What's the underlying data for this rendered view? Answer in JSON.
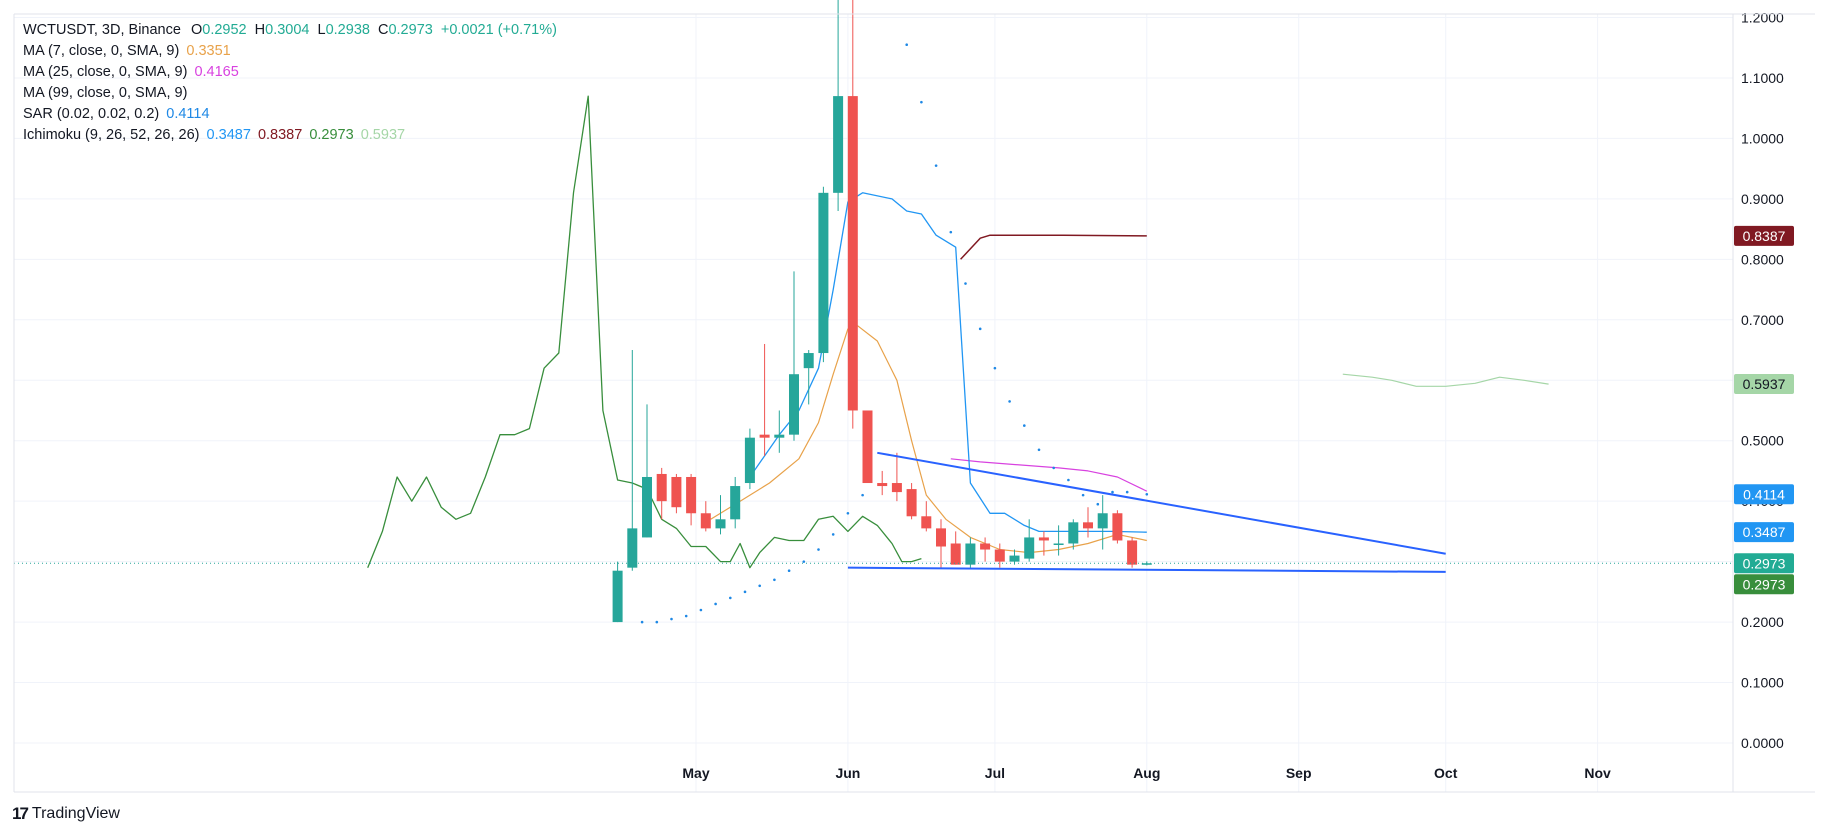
{
  "header": {
    "symbol": "WCTUSDT, 3D, Binance",
    "ohlc": {
      "o_label": "O",
      "o": "0.2952",
      "h_label": "H",
      "h": "0.3004",
      "l_label": "L",
      "l": "0.2938",
      "c_label": "C",
      "c": "0.2973",
      "change": "+0.0021 (+0.71%)"
    }
  },
  "indicators": [
    {
      "label": "MA (7, close, 0, SMA, 9)",
      "value": "0.3351",
      "color": "#e8a24a"
    },
    {
      "label": "MA (25, close, 0, SMA, 9)",
      "value": "0.4165",
      "color": "#d842e0"
    },
    {
      "label": "MA (99, close, 0, SMA, 9)",
      "value": "",
      "color": "#131722"
    },
    {
      "label": "SAR (0.02, 0.02, 0.2)",
      "value": "0.4114",
      "color": "#1e88e5"
    },
    {
      "label": "Ichimoku (9, 26, 52, 26, 26)",
      "values": [
        "0.3487",
        "0.8387",
        "0.2973",
        "0.5937"
      ],
      "colors": [
        "#2196f3",
        "#801922",
        "#388e3c",
        "#a5d6a7"
      ]
    }
  ],
  "price_badges": [
    {
      "text": "0.8387",
      "value": 0.8387,
      "bg": "#801922"
    },
    {
      "text": "0.5937",
      "value": 0.5937,
      "bg": "#a5d6a7"
    },
    {
      "text": "0.4114",
      "value": 0.4114,
      "bg": "#2196f3"
    },
    {
      "text": "0.3487",
      "value": 0.3487,
      "bg": "#2196f3"
    },
    {
      "text": "0.2973",
      "value": 0.2973,
      "bg": "#22ab94"
    },
    {
      "text": "0.2973",
      "value": 0.2973,
      "bg": "#388e3c"
    }
  ],
  "branding": {
    "name": "TradingView",
    "mark": "17"
  },
  "colors": {
    "up": "#26a69a",
    "down": "#ef5350",
    "grid": "#f0f3fa",
    "axis_text": "#131722",
    "trendline": "#2962ff"
  },
  "chart_data": {
    "type": "candlestick",
    "title": "WCTUSDT, 3D, Binance",
    "ylim": [
      0,
      1.2
    ],
    "y_ticks": [
      "0.0000",
      "0.1000",
      "0.2000",
      "0.3000",
      "0.4000",
      "0.5000",
      "0.6000",
      "0.7000",
      "0.8000",
      "0.9000",
      "1.0000",
      "1.1000",
      "1.2000"
    ],
    "y_tick_values": [
      0,
      0.1,
      0.2,
      0.3,
      0.4,
      0.5,
      0.6,
      0.7,
      0.8,
      0.9,
      1.0,
      1.1,
      1.2
    ],
    "x_ticks": [
      "May",
      "Jun",
      "Jul",
      "Aug",
      "Sep",
      "Oct",
      "Nov"
    ],
    "x_tick_dates": [
      "2025-05-01",
      "2025-06-01",
      "2025-07-01",
      "2025-08-01",
      "2025-09-01",
      "2025-10-01",
      "2025-11-01"
    ],
    "x_range": [
      "2025-02-15",
      "2025-11-20"
    ],
    "grid": true,
    "candles": [
      {
        "date": "2025-04-15",
        "o": 0.2,
        "h": 0.3,
        "l": 0.2,
        "c": 0.285
      },
      {
        "date": "2025-04-18",
        "o": 0.29,
        "h": 0.65,
        "l": 0.285,
        "c": 0.355
      },
      {
        "date": "2025-04-21",
        "o": 0.34,
        "h": 0.56,
        "l": 0.34,
        "c": 0.44
      },
      {
        "date": "2025-04-24",
        "o": 0.445,
        "h": 0.455,
        "l": 0.37,
        "c": 0.4
      },
      {
        "date": "2025-04-27",
        "o": 0.44,
        "h": 0.445,
        "l": 0.38,
        "c": 0.39
      },
      {
        "date": "2025-04-30",
        "o": 0.44,
        "h": 0.445,
        "l": 0.36,
        "c": 0.38
      },
      {
        "date": "2025-05-03",
        "o": 0.38,
        "h": 0.4,
        "l": 0.35,
        "c": 0.355
      },
      {
        "date": "2025-05-06",
        "o": 0.355,
        "h": 0.41,
        "l": 0.345,
        "c": 0.37
      },
      {
        "date": "2025-05-09",
        "o": 0.37,
        "h": 0.44,
        "l": 0.355,
        "c": 0.425
      },
      {
        "date": "2025-05-12",
        "o": 0.43,
        "h": 0.52,
        "l": 0.42,
        "c": 0.505
      },
      {
        "date": "2025-05-15",
        "o": 0.51,
        "h": 0.66,
        "l": 0.475,
        "c": 0.505
      },
      {
        "date": "2025-05-18",
        "o": 0.505,
        "h": 0.55,
        "l": 0.48,
        "c": 0.51
      },
      {
        "date": "2025-05-21",
        "o": 0.51,
        "h": 0.78,
        "l": 0.5,
        "c": 0.61
      },
      {
        "date": "2025-05-24",
        "o": 0.62,
        "h": 0.65,
        "l": 0.56,
        "c": 0.645
      },
      {
        "date": "2025-05-27",
        "o": 0.645,
        "h": 0.92,
        "l": 0.63,
        "c": 0.91
      },
      {
        "date": "2025-05-30",
        "o": 0.91,
        "h": 1.24,
        "l": 0.88,
        "c": 1.07
      },
      {
        "date": "2025-06-02",
        "o": 1.07,
        "h": 1.25,
        "l": 0.52,
        "c": 0.55
      },
      {
        "date": "2025-06-05",
        "o": 0.55,
        "h": 0.55,
        "l": 0.43,
        "c": 0.43
      },
      {
        "date": "2025-06-08",
        "o": 0.43,
        "h": 0.45,
        "l": 0.41,
        "c": 0.425
      },
      {
        "date": "2025-06-11",
        "o": 0.43,
        "h": 0.48,
        "l": 0.4,
        "c": 0.415
      },
      {
        "date": "2025-06-14",
        "o": 0.42,
        "h": 0.43,
        "l": 0.37,
        "c": 0.375
      },
      {
        "date": "2025-06-17",
        "o": 0.375,
        "h": 0.4,
        "l": 0.35,
        "c": 0.355
      },
      {
        "date": "2025-06-20",
        "o": 0.355,
        "h": 0.37,
        "l": 0.29,
        "c": 0.325
      },
      {
        "date": "2025-06-23",
        "o": 0.33,
        "h": 0.35,
        "l": 0.295,
        "c": 0.295
      },
      {
        "date": "2025-06-26",
        "o": 0.295,
        "h": 0.34,
        "l": 0.29,
        "c": 0.33
      },
      {
        "date": "2025-06-29",
        "o": 0.33,
        "h": 0.34,
        "l": 0.3,
        "c": 0.32
      },
      {
        "date": "2025-07-02",
        "o": 0.32,
        "h": 0.33,
        "l": 0.29,
        "c": 0.3
      },
      {
        "date": "2025-07-05",
        "o": 0.3,
        "h": 0.32,
        "l": 0.295,
        "c": 0.31
      },
      {
        "date": "2025-07-08",
        "o": 0.305,
        "h": 0.37,
        "l": 0.3,
        "c": 0.34
      },
      {
        "date": "2025-07-11",
        "o": 0.34,
        "h": 0.35,
        "l": 0.31,
        "c": 0.335
      },
      {
        "date": "2025-07-14",
        "o": 0.33,
        "h": 0.36,
        "l": 0.31,
        "c": 0.33
      },
      {
        "date": "2025-07-17",
        "o": 0.33,
        "h": 0.37,
        "l": 0.32,
        "c": 0.365
      },
      {
        "date": "2025-07-20",
        "o": 0.365,
        "h": 0.39,
        "l": 0.34,
        "c": 0.355
      },
      {
        "date": "2025-07-23",
        "o": 0.355,
        "h": 0.41,
        "l": 0.32,
        "c": 0.38
      },
      {
        "date": "2025-07-26",
        "o": 0.38,
        "h": 0.385,
        "l": 0.33,
        "c": 0.335
      },
      {
        "date": "2025-07-29",
        "o": 0.335,
        "h": 0.34,
        "l": 0.29,
        "c": 0.295
      },
      {
        "date": "2025-08-01",
        "o": 0.2952,
        "h": 0.3004,
        "l": 0.2938,
        "c": 0.2973
      }
    ],
    "series": [
      {
        "name": "MA (7, close, 0, SMA, 9)",
        "color": "#e8a24a",
        "points": [
          [
            "2025-05-04",
            0.37
          ],
          [
            "2025-05-10",
            0.4
          ],
          [
            "2025-05-16",
            0.43
          ],
          [
            "2025-05-22",
            0.47
          ],
          [
            "2025-05-26",
            0.53
          ],
          [
            "2025-05-29",
            0.61
          ],
          [
            "2025-06-01",
            0.685
          ],
          [
            "2025-06-03",
            0.69
          ],
          [
            "2025-06-07",
            0.665
          ],
          [
            "2025-06-11",
            0.6
          ],
          [
            "2025-06-14",
            0.5
          ],
          [
            "2025-06-17",
            0.41
          ],
          [
            "2025-06-21",
            0.37
          ],
          [
            "2025-06-26",
            0.34
          ],
          [
            "2025-07-02",
            0.32
          ],
          [
            "2025-07-08",
            0.315
          ],
          [
            "2025-07-14",
            0.32
          ],
          [
            "2025-07-20",
            0.33
          ],
          [
            "2025-07-26",
            0.345
          ],
          [
            "2025-08-01",
            0.335
          ]
        ]
      },
      {
        "name": "MA (25, close, 0, SMA, 9)",
        "color": "#d842e0",
        "points": [
          [
            "2025-06-22",
            0.47
          ],
          [
            "2025-06-28",
            0.465
          ],
          [
            "2025-07-06",
            0.46
          ],
          [
            "2025-07-14",
            0.455
          ],
          [
            "2025-07-20",
            0.45
          ],
          [
            "2025-07-26",
            0.44
          ],
          [
            "2025-08-01",
            0.4165
          ]
        ]
      },
      {
        "name": "SAR (0.02, 0.02, 0.2)",
        "color": "#1e88e5",
        "points": [
          [
            "2025-04-20",
            0.2
          ],
          [
            "2025-04-23",
            0.2
          ],
          [
            "2025-04-26",
            0.205
          ],
          [
            "2025-04-29",
            0.21
          ],
          [
            "2025-05-02",
            0.22
          ],
          [
            "2025-05-05",
            0.23
          ],
          [
            "2025-05-08",
            0.24
          ],
          [
            "2025-05-11",
            0.25
          ],
          [
            "2025-05-14",
            0.26
          ],
          [
            "2025-05-17",
            0.27
          ],
          [
            "2025-05-20",
            0.285
          ],
          [
            "2025-05-23",
            0.3
          ],
          [
            "2025-05-26",
            0.32
          ],
          [
            "2025-05-29",
            0.345
          ],
          [
            "2025-06-01",
            0.38
          ],
          [
            "2025-06-04",
            0.41
          ],
          [
            "2025-06-13",
            1.155
          ],
          [
            "2025-06-16",
            1.06
          ],
          [
            "2025-06-19",
            0.955
          ],
          [
            "2025-06-22",
            0.845
          ],
          [
            "2025-06-25",
            0.76
          ],
          [
            "2025-06-28",
            0.685
          ],
          [
            "2025-07-01",
            0.62
          ],
          [
            "2025-07-04",
            0.565
          ],
          [
            "2025-07-07",
            0.525
          ],
          [
            "2025-07-10",
            0.485
          ],
          [
            "2025-07-13",
            0.455
          ],
          [
            "2025-07-16",
            0.435
          ],
          [
            "2025-07-19",
            0.41
          ],
          [
            "2025-07-22",
            0.395
          ],
          [
            "2025-07-25",
            0.415
          ],
          [
            "2025-07-28",
            0.415
          ],
          [
            "2025-08-01",
            0.4114
          ]
        ]
      },
      {
        "name": "Ichimoku Conversion",
        "color": "#2196f3",
        "points": [
          [
            "2025-05-12",
            0.44
          ],
          [
            "2025-05-18",
            0.51
          ],
          [
            "2025-05-22",
            0.55
          ],
          [
            "2025-05-26",
            0.62
          ],
          [
            "2025-05-29",
            0.75
          ],
          [
            "2025-06-01",
            0.895
          ],
          [
            "2025-06-04",
            0.91
          ],
          [
            "2025-06-10",
            0.9
          ],
          [
            "2025-06-13",
            0.88
          ],
          [
            "2025-06-16",
            0.875
          ],
          [
            "2025-06-19",
            0.84
          ],
          [
            "2025-06-23",
            0.82
          ],
          [
            "2025-06-26",
            0.43
          ],
          [
            "2025-06-30",
            0.38
          ],
          [
            "2025-07-03",
            0.38
          ],
          [
            "2025-07-07",
            0.36
          ],
          [
            "2025-07-10",
            0.35
          ],
          [
            "2025-07-20",
            0.35
          ],
          [
            "2025-07-25",
            0.35
          ],
          [
            "2025-08-01",
            0.3487
          ]
        ]
      },
      {
        "name": "Ichimoku Base",
        "color": "#801922",
        "points": [
          [
            "2025-06-24",
            0.8
          ],
          [
            "2025-06-28",
            0.835
          ],
          [
            "2025-06-30",
            0.84
          ],
          [
            "2025-07-15",
            0.84
          ],
          [
            "2025-08-01",
            0.8387
          ]
        ]
      },
      {
        "name": "Ichimoku Lagging",
        "color": "#388e3c",
        "points": [
          [
            "2025-02-23",
            0.29
          ],
          [
            "2025-02-26",
            0.35
          ],
          [
            "2025-03-01",
            0.44
          ],
          [
            "2025-03-04",
            0.4
          ],
          [
            "2025-03-07",
            0.44
          ],
          [
            "2025-03-10",
            0.39
          ],
          [
            "2025-03-13",
            0.37
          ],
          [
            "2025-03-16",
            0.38
          ],
          [
            "2025-03-19",
            0.44
          ],
          [
            "2025-03-22",
            0.51
          ],
          [
            "2025-03-25",
            0.51
          ],
          [
            "2025-03-28",
            0.52
          ],
          [
            "2025-03-31",
            0.62
          ],
          [
            "2025-04-03",
            0.645
          ],
          [
            "2025-04-06",
            0.91
          ],
          [
            "2025-04-09",
            1.07
          ],
          [
            "2025-04-12",
            0.55
          ],
          [
            "2025-04-15",
            0.435
          ],
          [
            "2025-04-18",
            0.43
          ],
          [
            "2025-04-21",
            0.42
          ],
          [
            "2025-04-24",
            0.37
          ],
          [
            "2025-04-27",
            0.355
          ],
          [
            "2025-04-30",
            0.325
          ],
          [
            "2025-05-03",
            0.325
          ],
          [
            "2025-05-06",
            0.3
          ],
          [
            "2025-05-08",
            0.3
          ],
          [
            "2025-05-10",
            0.33
          ],
          [
            "2025-05-12",
            0.29
          ],
          [
            "2025-05-14",
            0.315
          ],
          [
            "2025-05-17",
            0.34
          ],
          [
            "2025-05-20",
            0.335
          ],
          [
            "2025-05-23",
            0.335
          ],
          [
            "2025-05-26",
            0.37
          ],
          [
            "2025-05-29",
            0.375
          ],
          [
            "2025-06-01",
            0.35
          ],
          [
            "2025-06-04",
            0.375
          ],
          [
            "2025-06-07",
            0.36
          ],
          [
            "2025-06-10",
            0.33
          ],
          [
            "2025-06-12",
            0.3
          ],
          [
            "2025-06-14",
            0.3
          ],
          [
            "2025-06-16",
            0.305
          ]
        ]
      },
      {
        "name": "Ichimoku Leading Span",
        "color": "#a5d6a7",
        "points": [
          [
            "2025-09-10",
            0.61
          ],
          [
            "2025-09-16",
            0.605
          ],
          [
            "2025-09-20",
            0.6
          ],
          [
            "2025-09-25",
            0.59
          ],
          [
            "2025-10-01",
            0.59
          ],
          [
            "2025-10-07",
            0.595
          ],
          [
            "2025-10-12",
            0.605
          ],
          [
            "2025-10-17",
            0.6
          ],
          [
            "2025-10-22",
            0.5937
          ]
        ]
      }
    ],
    "trendlines": [
      {
        "name": "descending-resistance",
        "start": [
          "2025-06-07",
          0.48
        ],
        "end": [
          "2025-10-01",
          0.313
        ]
      },
      {
        "name": "horizontal-support",
        "start": [
          "2025-06-01",
          0.29
        ],
        "end": [
          "2025-10-01",
          0.283
        ]
      }
    ],
    "last_price": 0.2973
  }
}
